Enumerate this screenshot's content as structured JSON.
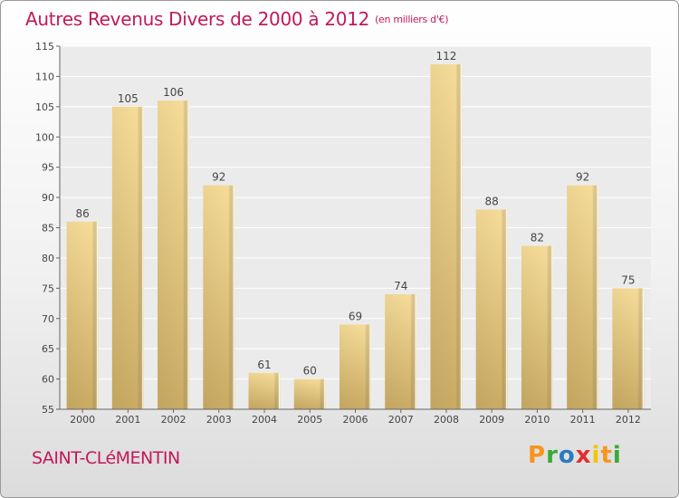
{
  "chart_data": {
    "type": "bar",
    "title": "Autres Revenus Divers de 2000 à 2012",
    "subtitle": "(en milliers d'€)",
    "categories": [
      "2000",
      "2001",
      "2002",
      "2003",
      "2004",
      "2005",
      "2006",
      "2007",
      "2008",
      "2009",
      "2010",
      "2011",
      "2012"
    ],
    "values": [
      86,
      105,
      106,
      92,
      61,
      60,
      69,
      74,
      112,
      88,
      82,
      92,
      75
    ],
    "ylim": [
      55,
      115
    ],
    "yticks": [
      55,
      60,
      65,
      70,
      75,
      80,
      85,
      90,
      95,
      100,
      105,
      110,
      115
    ],
    "grid": true,
    "bar_color": "#e8cd85"
  },
  "place_name": "SAINT-CLéMENTIN",
  "logo": {
    "letters": [
      "P",
      "r",
      "o",
      "x",
      "i",
      "t",
      "i"
    ]
  }
}
